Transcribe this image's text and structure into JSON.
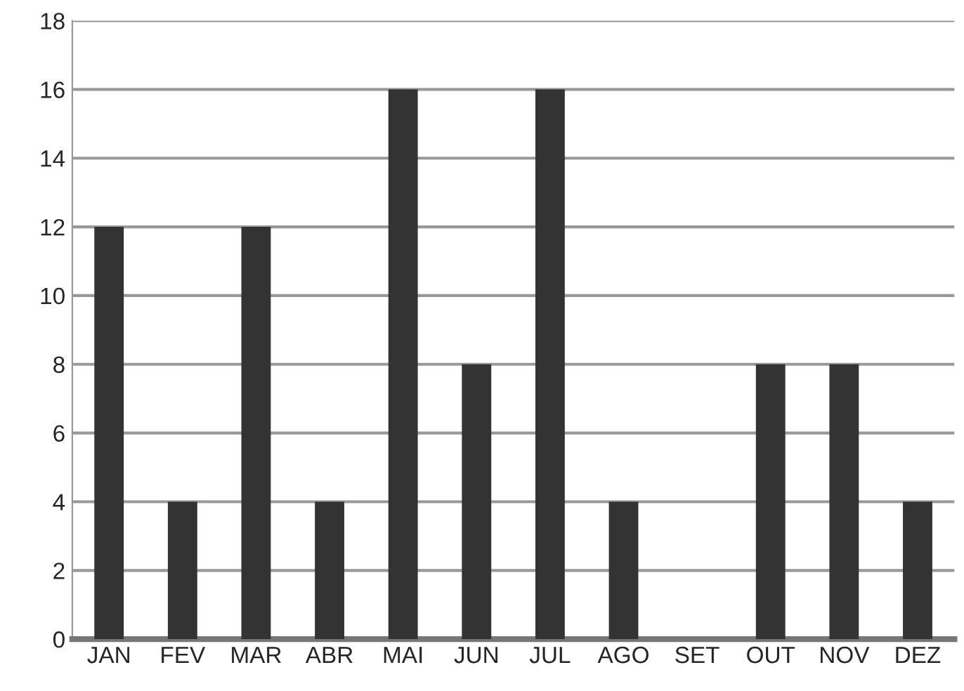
{
  "chart_data": {
    "type": "bar",
    "categories": [
      "JAN",
      "FEV",
      "MAR",
      "ABR",
      "MAI",
      "JUN",
      "JUL",
      "AGO",
      "SET",
      "OUT",
      "NOV",
      "DEZ"
    ],
    "values": [
      12,
      4,
      12,
      4,
      16,
      8,
      16,
      4,
      0,
      8,
      8,
      4
    ],
    "color": "#333333",
    "ylim": [
      0,
      18
    ],
    "yticks": [
      0,
      2,
      4,
      6,
      8,
      10,
      12,
      14,
      16,
      18
    ],
    "grid": "y"
  }
}
